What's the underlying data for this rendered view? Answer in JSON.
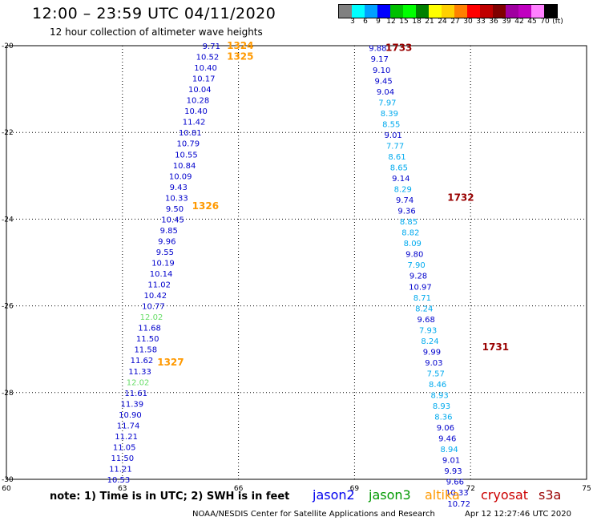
{
  "header": {
    "title": "12:00 – 23:59 UTC 04/11/2020",
    "subtitle": "12 hour collection of altimeter wave heights"
  },
  "legend": {
    "colors": [
      "#808080",
      "#00ffff",
      "#00a0ff",
      "#0000ff",
      "#00c000",
      "#00ff00",
      "#008000",
      "#ffff00",
      "#ffd000",
      "#ff8000",
      "#ff0000",
      "#c00000",
      "#800000",
      "#a000a0",
      "#c000c0",
      "#ff80ff",
      "#000000"
    ],
    "labels": [
      "3",
      "6",
      "9",
      "12",
      "15",
      "18",
      "21",
      "24",
      "27",
      "30",
      "33",
      "36",
      "39",
      "42",
      "45",
      "70",
      "(ft)"
    ]
  },
  "axes": {
    "x_ticks": [
      "60",
      "63",
      "66",
      "69",
      "72",
      "75"
    ],
    "y_ticks": [
      "-20",
      "-22",
      "-24",
      "-26",
      "-28",
      "-30"
    ]
  },
  "labels": [
    {
      "text": "1324",
      "lon": 65.7,
      "lat": -20.0,
      "color": "#ff9900"
    },
    {
      "text": "1325",
      "lon": 65.7,
      "lat": -20.25,
      "color": "#ff9900"
    },
    {
      "text": "1326",
      "lon": 64.8,
      "lat": -23.7,
      "color": "#ff9900"
    },
    {
      "text": "1327",
      "lon": 63.9,
      "lat": -27.3,
      "color": "#ff9900"
    },
    {
      "text": "1733",
      "lon": 69.8,
      "lat": -20.05,
      "color": "#990000"
    },
    {
      "text": "1732",
      "lon": 71.4,
      "lat": -23.5,
      "color": "#990000"
    },
    {
      "text": "1731",
      "lon": 72.3,
      "lat": -26.95,
      "color": "#990000"
    }
  ],
  "tracks": [
    {
      "name": "track-1324-1327",
      "points": [
        {
          "lon": 65.3,
          "lat": -20.0,
          "v": "9.71",
          "c": "#0000cc"
        },
        {
          "lon": 65.2,
          "lat": -20.25,
          "v": "10.52",
          "c": "#0000cc"
        },
        {
          "lon": 65.15,
          "lat": -20.5,
          "v": "10.40",
          "c": "#0000cc"
        },
        {
          "lon": 65.1,
          "lat": -20.75,
          "v": "10.17",
          "c": "#0000cc"
        },
        {
          "lon": 65.0,
          "lat": -21.0,
          "v": "10.04",
          "c": "#0000cc"
        },
        {
          "lon": 64.95,
          "lat": -21.25,
          "v": "10.28",
          "c": "#0000cc"
        },
        {
          "lon": 64.9,
          "lat": -21.5,
          "v": "10.40",
          "c": "#0000cc"
        },
        {
          "lon": 64.85,
          "lat": -21.75,
          "v": "11.42",
          "c": "#0000cc"
        },
        {
          "lon": 64.75,
          "lat": -22.0,
          "v": "10.81",
          "c": "#0000cc"
        },
        {
          "lon": 64.7,
          "lat": -22.25,
          "v": "10.79",
          "c": "#0000cc"
        },
        {
          "lon": 64.65,
          "lat": -22.5,
          "v": "10.55",
          "c": "#0000cc"
        },
        {
          "lon": 64.6,
          "lat": -22.75,
          "v": "10.84",
          "c": "#0000cc"
        },
        {
          "lon": 64.5,
          "lat": -23.0,
          "v": "10.09",
          "c": "#0000cc"
        },
        {
          "lon": 64.45,
          "lat": -23.25,
          "v": "9.43",
          "c": "#0000cc"
        },
        {
          "lon": 64.4,
          "lat": -23.5,
          "v": "10.33",
          "c": "#0000cc"
        },
        {
          "lon": 64.35,
          "lat": -23.75,
          "v": "9.50",
          "c": "#0000cc"
        },
        {
          "lon": 64.3,
          "lat": -24.0,
          "v": "10.45",
          "c": "#0000cc"
        },
        {
          "lon": 64.2,
          "lat": -24.25,
          "v": "9.85",
          "c": "#0000cc"
        },
        {
          "lon": 64.15,
          "lat": -24.5,
          "v": "9.96",
          "c": "#0000cc"
        },
        {
          "lon": 64.1,
          "lat": -24.75,
          "v": "9.55",
          "c": "#0000cc"
        },
        {
          "lon": 64.05,
          "lat": -25.0,
          "v": "10.19",
          "c": "#0000cc"
        },
        {
          "lon": 64.0,
          "lat": -25.25,
          "v": "10.14",
          "c": "#0000cc"
        },
        {
          "lon": 63.95,
          "lat": -25.5,
          "v": "11.02",
          "c": "#0000cc"
        },
        {
          "lon": 63.85,
          "lat": -25.75,
          "v": "10.42",
          "c": "#0000cc"
        },
        {
          "lon": 63.8,
          "lat": -26.0,
          "v": "10.77",
          "c": "#0000cc"
        },
        {
          "lon": 63.75,
          "lat": -26.25,
          "v": "12.02",
          "c": "#66dd66"
        },
        {
          "lon": 63.7,
          "lat": -26.5,
          "v": "11.68",
          "c": "#0000cc"
        },
        {
          "lon": 63.65,
          "lat": -26.75,
          "v": "11.50",
          "c": "#0000cc"
        },
        {
          "lon": 63.6,
          "lat": -27.0,
          "v": "11.58",
          "c": "#0000cc"
        },
        {
          "lon": 63.5,
          "lat": -27.25,
          "v": "11.62",
          "c": "#0000cc"
        },
        {
          "lon": 63.45,
          "lat": -27.5,
          "v": "11.33",
          "c": "#0000cc"
        },
        {
          "lon": 63.4,
          "lat": -27.75,
          "v": "12.02",
          "c": "#66dd66"
        },
        {
          "lon": 63.35,
          "lat": -28.0,
          "v": "11.61",
          "c": "#0000cc"
        },
        {
          "lon": 63.25,
          "lat": -28.25,
          "v": "11.39",
          "c": "#0000cc"
        },
        {
          "lon": 63.2,
          "lat": -28.5,
          "v": "10.90",
          "c": "#0000cc"
        },
        {
          "lon": 63.15,
          "lat": -28.75,
          "v": "11.74",
          "c": "#0000cc"
        },
        {
          "lon": 63.1,
          "lat": -29.0,
          "v": "11.21",
          "c": "#0000cc"
        },
        {
          "lon": 63.05,
          "lat": -29.25,
          "v": "11.05",
          "c": "#0000cc"
        },
        {
          "lon": 63.0,
          "lat": -29.5,
          "v": "11.50",
          "c": "#0000cc"
        },
        {
          "lon": 62.95,
          "lat": -29.75,
          "v": "11.21",
          "c": "#0000cc"
        },
        {
          "lon": 62.9,
          "lat": -30.0,
          "v": "10.53",
          "c": "#0000cc"
        }
      ]
    },
    {
      "name": "track-1731-1733",
      "points": [
        {
          "lon": 69.6,
          "lat": -20.05,
          "v": "9.88",
          "c": "#0000cc"
        },
        {
          "lon": 69.65,
          "lat": -20.3,
          "v": "9.17",
          "c": "#0000cc"
        },
        {
          "lon": 69.7,
          "lat": -20.55,
          "v": "9.10",
          "c": "#0000cc"
        },
        {
          "lon": 69.75,
          "lat": -20.8,
          "v": "9.45",
          "c": "#0000cc"
        },
        {
          "lon": 69.8,
          "lat": -21.05,
          "v": "9.04",
          "c": "#0000cc"
        },
        {
          "lon": 69.85,
          "lat": -21.3,
          "v": "7.97",
          "c": "#00aaee"
        },
        {
          "lon": 69.9,
          "lat": -21.55,
          "v": "8.39",
          "c": "#00aaee"
        },
        {
          "lon": 69.95,
          "lat": -21.8,
          "v": "8.55",
          "c": "#00aaee"
        },
        {
          "lon": 70.0,
          "lat": -22.05,
          "v": "9.01",
          "c": "#0000cc"
        },
        {
          "lon": 70.05,
          "lat": -22.3,
          "v": "7.77",
          "c": "#00aaee"
        },
        {
          "lon": 70.1,
          "lat": -22.55,
          "v": "8.61",
          "c": "#00aaee"
        },
        {
          "lon": 70.15,
          "lat": -22.8,
          "v": "8.65",
          "c": "#00aaee"
        },
        {
          "lon": 70.2,
          "lat": -23.05,
          "v": "9.14",
          "c": "#0000cc"
        },
        {
          "lon": 70.25,
          "lat": -23.3,
          "v": "8.29",
          "c": "#00aaee"
        },
        {
          "lon": 70.3,
          "lat": -23.55,
          "v": "9.74",
          "c": "#0000cc"
        },
        {
          "lon": 70.35,
          "lat": -23.8,
          "v": "9.36",
          "c": "#0000cc"
        },
        {
          "lon": 70.4,
          "lat": -24.05,
          "v": "8.85",
          "c": "#00aaee"
        },
        {
          "lon": 70.45,
          "lat": -24.3,
          "v": "8.82",
          "c": "#00aaee"
        },
        {
          "lon": 70.5,
          "lat": -24.55,
          "v": "8.09",
          "c": "#00aaee"
        },
        {
          "lon": 70.55,
          "lat": -24.8,
          "v": "9.80",
          "c": "#0000cc"
        },
        {
          "lon": 70.6,
          "lat": -25.05,
          "v": "7.90",
          "c": "#00aaee"
        },
        {
          "lon": 70.65,
          "lat": -25.3,
          "v": "9.28",
          "c": "#0000cc"
        },
        {
          "lon": 70.7,
          "lat": -25.55,
          "v": "10.97",
          "c": "#0000cc"
        },
        {
          "lon": 70.75,
          "lat": -25.8,
          "v": "8.71",
          "c": "#00aaee"
        },
        {
          "lon": 70.8,
          "lat": -26.05,
          "v": "8.24",
          "c": "#00aaee"
        },
        {
          "lon": 70.85,
          "lat": -26.3,
          "v": "9.68",
          "c": "#0000cc"
        },
        {
          "lon": 70.9,
          "lat": -26.55,
          "v": "7.93",
          "c": "#00aaee"
        },
        {
          "lon": 70.95,
          "lat": -26.8,
          "v": "8.24",
          "c": "#00aaee"
        },
        {
          "lon": 71.0,
          "lat": -27.05,
          "v": "9.99",
          "c": "#0000cc"
        },
        {
          "lon": 71.05,
          "lat": -27.3,
          "v": "9.03",
          "c": "#0000cc"
        },
        {
          "lon": 71.1,
          "lat": -27.55,
          "v": "7.57",
          "c": "#00aaee"
        },
        {
          "lon": 71.15,
          "lat": -27.8,
          "v": "8.46",
          "c": "#00aaee"
        },
        {
          "lon": 71.2,
          "lat": -28.05,
          "v": "8.93",
          "c": "#00aaee"
        },
        {
          "lon": 71.25,
          "lat": -28.3,
          "v": "8.93",
          "c": "#00aaee"
        },
        {
          "lon": 71.3,
          "lat": -28.55,
          "v": "8.36",
          "c": "#00aaee"
        },
        {
          "lon": 71.35,
          "lat": -28.8,
          "v": "9.06",
          "c": "#0000cc"
        },
        {
          "lon": 71.4,
          "lat": -29.05,
          "v": "9.46",
          "c": "#0000cc"
        },
        {
          "lon": 71.45,
          "lat": -29.3,
          "v": "8.94",
          "c": "#00aaee"
        },
        {
          "lon": 71.5,
          "lat": -29.55,
          "v": "9.01",
          "c": "#0000cc"
        },
        {
          "lon": 71.55,
          "lat": -29.8,
          "v": "9.93",
          "c": "#0000cc"
        },
        {
          "lon": 71.6,
          "lat": -30.05,
          "v": "9.66",
          "c": "#0000cc"
        },
        {
          "lon": 71.65,
          "lat": -30.3,
          "v": "10.33",
          "c": "#0000cc"
        },
        {
          "lon": 71.7,
          "lat": -30.55,
          "v": "10.72",
          "c": "#0000cc"
        }
      ]
    }
  ],
  "footer": {
    "note": "note: 1) Time is in UTC; 2) SWH is in feet",
    "satellites": [
      {
        "name": "jason2",
        "color": "#0000ee"
      },
      {
        "name": "jason3",
        "color": "#009900"
      },
      {
        "name": "altika",
        "color": "#ff9900"
      },
      {
        "name": "cryosat",
        "color": "#cc0000"
      },
      {
        "name": "s3a",
        "color": "#990000"
      }
    ],
    "credit": "NOAA/NESDIS Center for Satellite Applications and Research",
    "timestamp": "Apr 12 12:27:46 UTC 2020"
  }
}
